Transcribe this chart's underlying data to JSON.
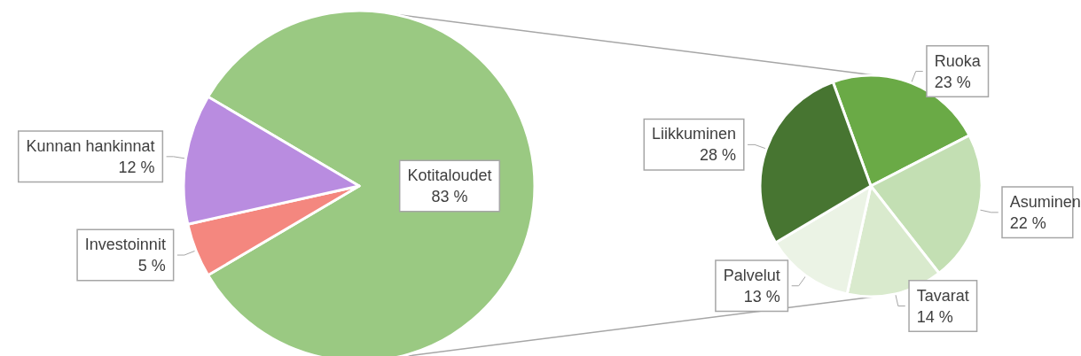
{
  "chart_data": [
    {
      "type": "pie",
      "categories": [
        "Kotitaloudet",
        "Investoinnit",
        "Kunnan hankinnat"
      ],
      "values": [
        83,
        5,
        12
      ],
      "colors": [
        "#9ac982",
        "#f4877f",
        "#b98ce0"
      ],
      "value_labels": [
        "83 %",
        "5 %",
        "12 %"
      ]
    },
    {
      "type": "pie",
      "categories": [
        "Ruoka",
        "Asuminen",
        "Tavarat",
        "Palvelut",
        "Liikkuminen"
      ],
      "values": [
        23,
        22,
        14,
        13,
        28
      ],
      "colors": [
        "#6aaa46",
        "#c3dfb3",
        "#d9eacd",
        "#ebf3e5",
        "#477531"
      ],
      "value_labels": [
        "23 %",
        "22 %",
        "14 %",
        "13 %",
        "28 %"
      ]
    }
  ]
}
